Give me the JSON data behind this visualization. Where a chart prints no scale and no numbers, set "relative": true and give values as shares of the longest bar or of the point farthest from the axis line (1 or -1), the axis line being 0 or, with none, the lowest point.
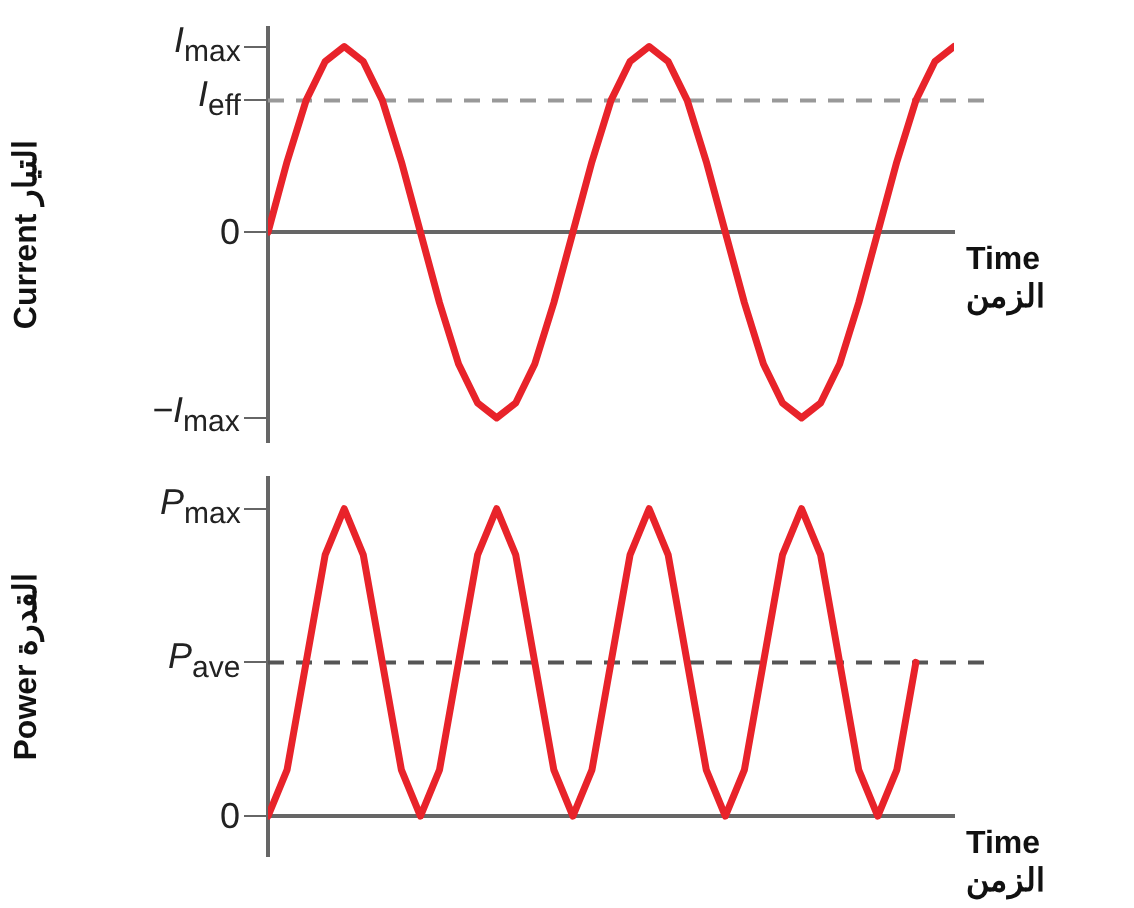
{
  "chart_data": [
    {
      "type": "line",
      "relative": true,
      "ylabel": "Current التيار",
      "xlabel": "Time\nالزمن",
      "categories": [
        null,
        null,
        null,
        null,
        null,
        null,
        null,
        null,
        null,
        null,
        null,
        null,
        null,
        null,
        null,
        null,
        null,
        null,
        null,
        null,
        null,
        null,
        null,
        null,
        null,
        null,
        null,
        null,
        null,
        null,
        null,
        null,
        null,
        null,
        null,
        null,
        null
      ],
      "series": [
        {
          "color": "#e8232a",
          "values": [
            0,
            0.38,
            0.71,
            0.92,
            1,
            0.92,
            0.71,
            0.38,
            0,
            -0.38,
            -0.71,
            -0.92,
            -1,
            -0.92,
            -0.71,
            -0.38,
            0,
            0.38,
            0.71,
            0.92,
            1,
            0.92,
            0.71,
            0.38,
            0,
            -0.38,
            -0.71,
            -0.92,
            -1,
            -0.92,
            -0.71,
            -0.38,
            0,
            0.38,
            0.71,
            0.92,
            1
          ]
        }
      ],
      "annotations": [
        "I$_{max}$",
        "0",
        "−I$_{max}$"
      ],
      "ref_lines": [
        {
          "axis": "y",
          "value": 0.71,
          "label": "I$_{eff}$",
          "color": "#999999",
          "line_style": "dashed"
        }
      ],
      "legend": false,
      "marker": "none",
      "line_style": "solid"
    },
    {
      "type": "line",
      "relative": true,
      "ylabel": "Power القدرة",
      "xlabel": "Time\nالزمن",
      "categories": [
        null,
        null,
        null,
        null,
        null,
        null,
        null,
        null,
        null,
        null,
        null,
        null,
        null,
        null,
        null,
        null,
        null,
        null,
        null,
        null,
        null,
        null,
        null,
        null,
        null,
        null,
        null,
        null,
        null,
        null,
        null,
        null,
        null,
        null,
        null,
        null,
        null
      ],
      "series": [
        {
          "color": "#e8232a",
          "values": [
            0,
            0.15,
            0.5,
            0.85,
            1,
            0.85,
            0.5,
            0.15,
            0,
            0.15,
            0.5,
            0.85,
            1,
            0.85,
            0.5,
            0.15,
            0,
            0.15,
            0.5,
            0.85,
            1,
            0.85,
            0.5,
            0.15,
            0,
            0.15,
            0.5,
            0.85,
            1,
            0.85,
            0.5,
            0.15,
            0,
            0.15,
            0.5,
            null,
            null
          ]
        }
      ],
      "annotations": [
        "P$_{max}$",
        "0"
      ],
      "ref_lines": [
        {
          "axis": "y",
          "value": 0.5,
          "label": "P$_{ave}$",
          "color": "#555555",
          "line_style": "dashed"
        }
      ],
      "legend": false,
      "marker": "none",
      "line_style": "solid"
    }
  ]
}
